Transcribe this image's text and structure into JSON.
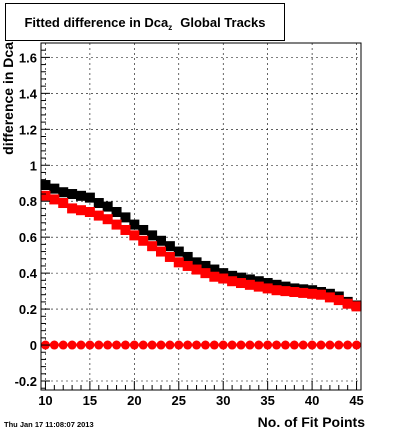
{
  "title": {
    "main": "Fitted difference in Dca",
    "subscript": "z",
    "suffix": "Global Tracks"
  },
  "timestamp": "Thu Jan 17 11:08:07 2013",
  "colors": {
    "black_series": "#000000",
    "red_series": "#ff0000",
    "grid": "#000000",
    "zero_line": "#ff0000"
  },
  "chart_data": {
    "type": "scatter",
    "title": "Fitted difference in Dca z  Global Tracks",
    "xlabel": "No. of Fit Points",
    "ylabel": "difference in Dca",
    "xlim": [
      9.5,
      45.5
    ],
    "ylim": [
      -0.25,
      1.68
    ],
    "xticks": [
      10,
      15,
      20,
      25,
      30,
      35,
      40,
      45
    ],
    "yticks": [
      -0.2,
      0,
      0.2,
      0.4,
      0.6,
      0.8,
      1,
      1.2,
      1.4,
      1.6
    ],
    "ytick_labels": [
      "-0.2",
      "0",
      "0.2",
      "0.4",
      "0.6",
      "0.8",
      "1",
      "1.2",
      "1.4",
      "1.6"
    ],
    "grid": true,
    "x": [
      10,
      11,
      12,
      13,
      14,
      15,
      16,
      17,
      18,
      19,
      20,
      21,
      22,
      23,
      24,
      25,
      26,
      27,
      28,
      29,
      30,
      31,
      32,
      33,
      34,
      35,
      36,
      37,
      38,
      39,
      40,
      41,
      42,
      43,
      44,
      45
    ],
    "series": [
      {
        "marker": "square",
        "color": "#000000",
        "values": [
          0.89,
          0.87,
          0.85,
          0.84,
          0.83,
          0.82,
          0.79,
          0.77,
          0.74,
          0.71,
          0.67,
          0.64,
          0.61,
          0.58,
          0.55,
          0.52,
          0.49,
          0.46,
          0.44,
          0.42,
          0.4,
          0.385,
          0.375,
          0.365,
          0.355,
          0.345,
          0.335,
          0.325,
          0.315,
          0.31,
          0.305,
          0.295,
          0.285,
          0.27,
          0.24,
          0.22
        ]
      },
      {
        "marker": "square",
        "color": "#ff0000",
        "values": [
          0.83,
          0.81,
          0.79,
          0.76,
          0.75,
          0.74,
          0.72,
          0.7,
          0.67,
          0.64,
          0.61,
          0.58,
          0.55,
          0.52,
          0.49,
          0.46,
          0.44,
          0.42,
          0.4,
          0.38,
          0.37,
          0.355,
          0.345,
          0.335,
          0.325,
          0.315,
          0.305,
          0.3,
          0.295,
          0.29,
          0.285,
          0.28,
          0.265,
          0.25,
          0.23,
          0.215
        ]
      },
      {
        "marker": "circle",
        "color": "#ff0000",
        "values": [
          0.0,
          0.0,
          0.0,
          0.0,
          0.0,
          0.0,
          0.0,
          0.0,
          0.0,
          0.0,
          0.0,
          0.0,
          0.0,
          0.0,
          0.0,
          0.0,
          0.0,
          0.0,
          0.0,
          0.0,
          0.0,
          0.0,
          0.0,
          0.0,
          0.0,
          0.0,
          0.0,
          0.0,
          0.0,
          0.0,
          0.0,
          0.0,
          0.0,
          0.0,
          0.0,
          0.0
        ]
      }
    ]
  }
}
